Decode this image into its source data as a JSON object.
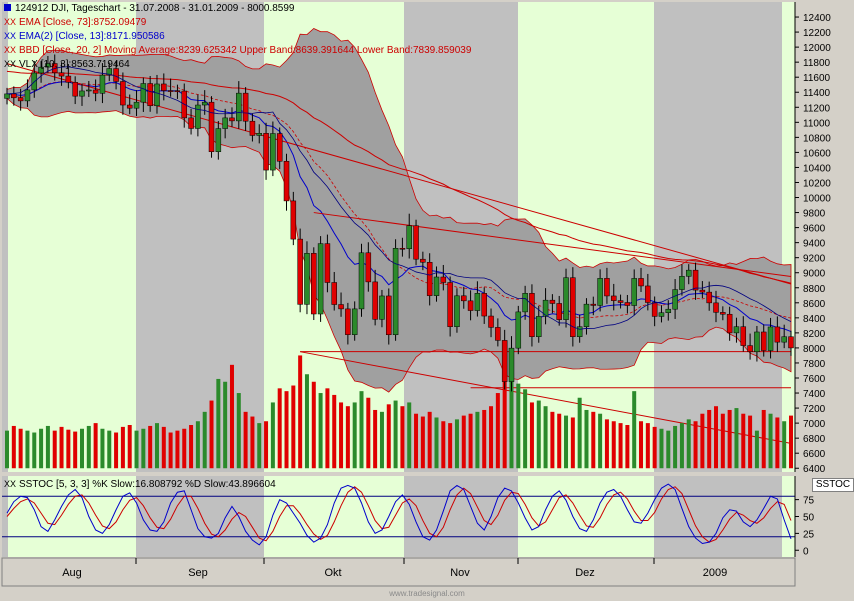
{
  "header": {
    "symbol_line": "124912 DJI, Tageschart - 31.07.2008 - 31.01.2009 - 8000.8599",
    "ema_line": "EMA [Close, 73]:8752.09479",
    "ema2_line": "EMA(2) [Close, 13]:8171.950586",
    "bbd_line": "BBD [Close, 20, 2] Moving Average:8239.625342 Upper Band:8639.391644 Lower Band:7839.859039",
    "vlx_line": "VLX [10, 3]:8563.719464",
    "stoch_line": "SSTOC [5, 3, 3] %K Slow:16.808792 %D Slow:43.896604",
    "stoch_badge": "SSTOC",
    "footer": "www.tradesignal.com"
  },
  "colors": {
    "background": "#c0c0c0",
    "band_fill": "#a0a0a0",
    "month_shade": "#e6ffd6",
    "up_candle": "#2b8a2b",
    "down_candle": "#e00000",
    "ema_red": "#cc0000",
    "ema_blue": "#0000cc"
  },
  "chart_data": [
    {
      "type": "candlestick",
      "title": "124912 DJI, Tageschart - 31.07.2008 - 31.01.2009 - 8000.8599",
      "x_categories": [
        "Aug",
        "Sep",
        "Okt",
        "Nov",
        "Dez",
        "2009"
      ],
      "y_ticks": [
        6400,
        6600,
        6800,
        7000,
        7200,
        7400,
        7600,
        7800,
        8000,
        8200,
        8400,
        8600,
        8800,
        9000,
        9200,
        9400,
        9600,
        9800,
        10000,
        10200,
        10400,
        10600,
        10800,
        11000,
        11200,
        11400,
        11600,
        11800,
        12000,
        12200,
        12400
      ],
      "ylim": [
        6350,
        12600
      ],
      "series": [
        {
          "name": "EMA [Close, 73]",
          "last": 8752.09479
        },
        {
          "name": "EMA(2) [Close, 13]",
          "last": 8171.950586
        },
        {
          "name": "BBD [Close, 20, 2]",
          "moving_average": 8239.625342,
          "upper_band": 8639.391644,
          "lower_band": 7839.859039
        },
        {
          "name": "VLX [10, 3]",
          "last": 8563.719464
        }
      ],
      "closes": [
        11378,
        11326,
        11285,
        11431,
        11656,
        11734,
        11782,
        11659,
        11615,
        11532,
        11348,
        11417,
        11430,
        11386,
        11628,
        11715,
        11543,
        11230,
        11188,
        11268,
        11516,
        11220,
        11510,
        11422,
        11421,
        11416,
        11059,
        10918,
        11230,
        11268,
        10609,
        10917,
        11059,
        11019,
        11388,
        11015,
        10825,
        10854,
        10365,
        10851,
        10482,
        9955,
        9447,
        8579,
        9258,
        8451,
        9387,
        8870,
        8577,
        8519,
        8176,
        8519,
        9265,
        8878,
        8380,
        8691,
        8175,
        9325,
        9319,
        9625,
        9180,
        9139,
        8695,
        8943,
        8870,
        8282,
        8693,
        8626,
        8497,
        8726,
        8424,
        8273,
        8100,
        7552,
        7997,
        8479,
        8726,
        8149,
        8419,
        8635,
        8591,
        8376,
        8934,
        8149,
        8282,
        8582,
        8565,
        8925,
        8691,
        8629,
        8604,
        8564,
        8924,
        8824,
        8604,
        8419,
        8468,
        8515,
        8776,
        8952,
        9034,
        8769,
        8742,
        8599,
        8473,
        8448,
        8200,
        8282,
        8031,
        7949,
        8212,
        7965,
        8279,
        8077,
        8149,
        8000
      ],
      "volume_panel": {
        "ylim": [
          0,
          100
        ],
        "relative_values": [
          40,
          45,
          42,
          40,
          38,
          42,
          45,
          40,
          44,
          41,
          39,
          42,
          45,
          48,
          42,
          40,
          38,
          44,
          46,
          40,
          42,
          45,
          48,
          44,
          38,
          40,
          42,
          46,
          50,
          60,
          72,
          95,
          92,
          110,
          80,
          60,
          55,
          48,
          50,
          70,
          85,
          82,
          88,
          120,
          100,
          92,
          80,
          85,
          78,
          70,
          66,
          70,
          82,
          75,
          62,
          60,
          68,
          72,
          66,
          70,
          58,
          55,
          60,
          54,
          50,
          48,
          52,
          56,
          58,
          60,
          62,
          66,
          80,
          95,
          100,
          90,
          84,
          70,
          72,
          66,
          60,
          58,
          56,
          54,
          75,
          62,
          60,
          58,
          52,
          50,
          48,
          46,
          82,
          50,
          48,
          44,
          42,
          40,
          45,
          48,
          52,
          50,
          58,
          62,
          66,
          58,
          62,
          64,
          58,
          56,
          40,
          62,
          58,
          54,
          50,
          56
        ]
      }
    },
    {
      "type": "line",
      "title": "SSTOC [5, 3, 3]",
      "y_ticks": [
        0,
        25,
        50,
        75
      ],
      "ylim": [
        -10,
        110
      ],
      "reference_lines": [
        20,
        80
      ],
      "series": [
        {
          "name": "%K Slow",
          "last": 16.808792,
          "values": [
            55,
            72,
            80,
            78,
            60,
            35,
            28,
            45,
            65,
            82,
            90,
            78,
            50,
            30,
            25,
            38,
            60,
            80,
            85,
            70,
            45,
            30,
            28,
            42,
            70,
            86,
            88,
            60,
            32,
            20,
            18,
            25,
            48,
            65,
            50,
            28,
            15,
            8,
            20,
            52,
            75,
            70,
            55,
            40,
            22,
            12,
            18,
            38,
            70,
            92,
            96,
            92,
            70,
            42,
            25,
            30,
            50,
            72,
            82,
            68,
            42,
            20,
            15,
            30,
            58,
            88,
            96,
            90,
            65,
            40,
            30,
            50,
            78,
            92,
            88,
            70,
            48,
            30,
            35,
            60,
            80,
            88,
            74,
            50,
            32,
            28,
            45,
            70,
            86,
            90,
            80,
            60,
            42,
            40,
            55,
            75,
            92,
            98,
            90,
            62,
            35,
            18,
            10,
            12,
            25,
            48,
            60,
            58,
            42,
            35,
            45,
            62,
            80,
            76,
            45,
            17
          ]
        },
        {
          "name": "%D Slow",
          "last": 43.896604,
          "values": [
            50,
            62,
            72,
            76,
            70,
            55,
            40,
            38,
            52,
            68,
            80,
            82,
            70,
            52,
            36,
            32,
            42,
            60,
            74,
            78,
            66,
            48,
            34,
            32,
            46,
            66,
            80,
            80,
            62,
            40,
            24,
            20,
            30,
            46,
            56,
            50,
            34,
            18,
            14,
            28,
            50,
            66,
            66,
            54,
            38,
            24,
            16,
            22,
            42,
            66,
            86,
            94,
            86,
            66,
            44,
            32,
            34,
            52,
            70,
            76,
            66,
            44,
            25,
            20,
            34,
            60,
            82,
            92,
            84,
            64,
            44,
            38,
            52,
            74,
            86,
            84,
            68,
            48,
            36,
            42,
            60,
            78,
            82,
            70,
            52,
            36,
            34,
            48,
            68,
            82,
            86,
            76,
            58,
            44,
            44,
            56,
            76,
            90,
            94,
            84,
            60,
            36,
            20,
            12,
            16,
            30,
            46,
            56,
            52,
            44,
            40,
            48,
            62,
            72,
            68,
            44
          ]
        }
      ]
    }
  ]
}
